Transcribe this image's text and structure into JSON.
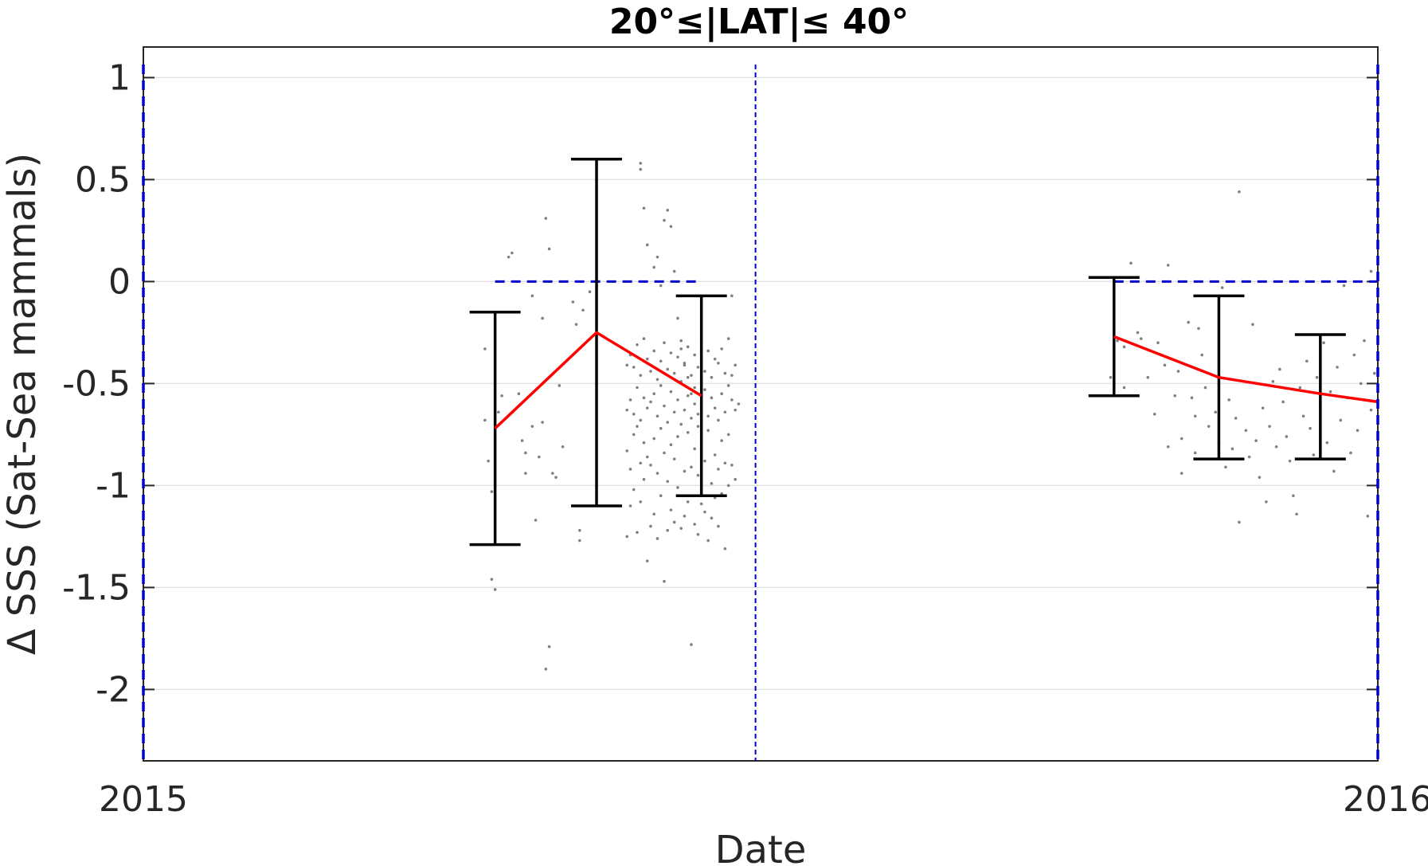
{
  "chart_data": {
    "type": "scatter",
    "title": "20°≤|LAT|≤ 40°",
    "xlabel": "Date",
    "ylabel": "Δ SSS (Sat-Sea mammals)",
    "xlim": [
      "2015-01-01",
      "2016-01-01"
    ],
    "ylim": [
      -2.35,
      1.15
    ],
    "x_ticks": [
      {
        "label": "2015",
        "value": "2015-01-01"
      },
      {
        "label": "2016",
        "value": "2016-01-01"
      }
    ],
    "y_ticks": [
      {
        "label": "1",
        "value": 1
      },
      {
        "label": "0.5",
        "value": 0.5
      },
      {
        "label": "0",
        "value": 0
      },
      {
        "label": "-0.5",
        "value": -0.5
      },
      {
        "label": "-1",
        "value": -1
      },
      {
        "label": "-1.5",
        "value": -1.5
      },
      {
        "label": "-2",
        "value": -2
      }
    ],
    "grid": true,
    "colors": {
      "mean_line": "#ff0000",
      "error_bars": "#000000",
      "points": "#808080",
      "reference": "#0000cc",
      "grid": "#e1e1e1"
    },
    "mean_line": [
      {
        "x": "2015-04-15",
        "y": -0.72
      },
      {
        "x": "2015-05-15",
        "y": -0.25
      },
      {
        "x": "2015-06-15",
        "y": -0.56
      },
      {
        "x": "2015-10-15",
        "y": -0.27
      },
      {
        "x": "2015-11-15",
        "y": -0.47
      },
      {
        "x": "2015-12-15",
        "y": -0.55
      },
      {
        "x": "2016-01-01",
        "y": -0.59
      }
    ],
    "error_bars": [
      {
        "x": "2015-04-15",
        "low": -1.29,
        "high": -0.15
      },
      {
        "x": "2015-05-15",
        "low": -1.1,
        "high": 0.6
      },
      {
        "x": "2015-06-15",
        "low": -1.05,
        "high": -0.07
      },
      {
        "x": "2015-10-15",
        "low": -0.56,
        "high": 0.02
      },
      {
        "x": "2015-11-15",
        "low": -0.87,
        "high": -0.07
      },
      {
        "x": "2015-12-15",
        "low": -0.87,
        "high": -0.26
      }
    ],
    "reference_lines": {
      "zero_segments": [
        {
          "x_start": "2015-04-15",
          "x_end": "2015-06-15",
          "y": 0
        },
        {
          "x_start": "2015-10-15",
          "x_end": "2016-01-01",
          "y": 0
        }
      ],
      "vertical": [
        "2015-01-01",
        "2015-07-01",
        "2016-01-01"
      ]
    },
    "points": [
      {
        "x": "2015-04-12",
        "y": -0.33
      },
      {
        "x": "2015-04-12",
        "y": -0.68
      },
      {
        "x": "2015-04-13",
        "y": -0.88
      },
      {
        "x": "2015-04-14",
        "y": -1.46
      },
      {
        "x": "2015-04-15",
        "y": -1.51
      },
      {
        "x": "2015-04-14",
        "y": -1.03
      },
      {
        "x": "2015-04-16",
        "y": -0.64
      },
      {
        "x": "2015-04-17",
        "y": -0.56
      },
      {
        "x": "2015-04-19",
        "y": 0.12
      },
      {
        "x": "2015-04-20",
        "y": 0.14
      },
      {
        "x": "2015-04-22",
        "y": -0.55
      },
      {
        "x": "2015-04-23",
        "y": -0.78
      },
      {
        "x": "2015-04-24",
        "y": -0.84
      },
      {
        "x": "2015-04-24",
        "y": -0.94
      },
      {
        "x": "2015-04-26",
        "y": -0.07
      },
      {
        "x": "2015-04-26",
        "y": -0.71
      },
      {
        "x": "2015-04-27",
        "y": -1.17
      },
      {
        "x": "2015-04-28",
        "y": -0.86
      },
      {
        "x": "2015-04-29",
        "y": -0.69
      },
      {
        "x": "2015-04-29",
        "y": -0.18
      },
      {
        "x": "2015-04-30",
        "y": 0.31
      },
      {
        "x": "2015-04-30",
        "y": -1.9
      },
      {
        "x": "2015-05-01",
        "y": -1.79
      },
      {
        "x": "2015-05-01",
        "y": 0.16
      },
      {
        "x": "2015-05-02",
        "y": -0.94
      },
      {
        "x": "2015-05-03",
        "y": -0.96
      },
      {
        "x": "2015-05-04",
        "y": -0.51
      },
      {
        "x": "2015-05-05",
        "y": -0.81
      },
      {
        "x": "2015-05-08",
        "y": -0.1
      },
      {
        "x": "2015-05-09",
        "y": -0.21
      },
      {
        "x": "2015-05-10",
        "y": -1.27
      },
      {
        "x": "2015-05-10",
        "y": -1.22
      },
      {
        "x": "2015-05-11",
        "y": -0.14
      },
      {
        "x": "2015-05-13",
        "y": -0.05
      },
      {
        "x": "2015-05-28",
        "y": 0.58
      },
      {
        "x": "2015-05-28",
        "y": 0.55
      },
      {
        "x": "2015-05-29",
        "y": 0.36
      },
      {
        "x": "2015-05-30",
        "y": 0.18
      },
      {
        "x": "2015-06-01",
        "y": 0.07
      },
      {
        "x": "2015-06-02",
        "y": 0.12
      },
      {
        "x": "2015-06-03",
        "y": -0.02
      },
      {
        "x": "2015-06-04",
        "y": 0.3
      },
      {
        "x": "2015-06-05",
        "y": 0.35
      },
      {
        "x": "2015-06-06",
        "y": 0.27
      },
      {
        "x": "2015-06-07",
        "y": 0.05
      },
      {
        "x": "2015-06-08",
        "y": -0.18
      },
      {
        "x": "2015-06-09",
        "y": -0.33
      },
      {
        "x": "2015-06-10",
        "y": -0.4
      },
      {
        "x": "2015-06-11",
        "y": -0.47
      },
      {
        "x": "2015-06-12",
        "y": -0.55
      },
      {
        "x": "2015-06-13",
        "y": -0.6
      },
      {
        "x": "2015-06-14",
        "y": -0.65
      },
      {
        "x": "2015-05-24",
        "y": -0.41
      },
      {
        "x": "2015-05-24",
        "y": -0.63
      },
      {
        "x": "2015-05-24",
        "y": -0.83
      },
      {
        "x": "2015-05-24",
        "y": -1.25
      },
      {
        "x": "2015-05-25",
        "y": -0.36
      },
      {
        "x": "2015-05-25",
        "y": -0.58
      },
      {
        "x": "2015-05-25",
        "y": -0.92
      },
      {
        "x": "2015-05-25",
        "y": -1.1
      },
      {
        "x": "2015-05-26",
        "y": -0.42
      },
      {
        "x": "2015-05-26",
        "y": -0.65
      },
      {
        "x": "2015-05-26",
        "y": -0.75
      },
      {
        "x": "2015-05-26",
        "y": -1.02
      },
      {
        "x": "2015-05-27",
        "y": -0.31
      },
      {
        "x": "2015-05-27",
        "y": -0.52
      },
      {
        "x": "2015-05-27",
        "y": -0.71
      },
      {
        "x": "2015-05-27",
        "y": -1.23
      },
      {
        "x": "2015-05-28",
        "y": -0.46
      },
      {
        "x": "2015-05-28",
        "y": -0.68
      },
      {
        "x": "2015-05-28",
        "y": -0.89
      },
      {
        "x": "2015-05-28",
        "y": -1.08
      },
      {
        "x": "2015-05-29",
        "y": -0.28
      },
      {
        "x": "2015-05-29",
        "y": -0.57
      },
      {
        "x": "2015-05-29",
        "y": -0.79
      },
      {
        "x": "2015-05-29",
        "y": -0.97
      },
      {
        "x": "2015-05-30",
        "y": -0.38
      },
      {
        "x": "2015-05-30",
        "y": -0.62
      },
      {
        "x": "2015-05-30",
        "y": -0.86
      },
      {
        "x": "2015-05-30",
        "y": -1.37
      },
      {
        "x": "2015-05-31",
        "y": -0.44
      },
      {
        "x": "2015-05-31",
        "y": -0.59
      },
      {
        "x": "2015-05-31",
        "y": -0.9
      },
      {
        "x": "2015-05-31",
        "y": -1.2
      },
      {
        "x": "2015-06-01",
        "y": -0.34
      },
      {
        "x": "2015-06-01",
        "y": -0.55
      },
      {
        "x": "2015-06-01",
        "y": -0.77
      },
      {
        "x": "2015-06-01",
        "y": -1.14
      },
      {
        "x": "2015-06-02",
        "y": -0.48
      },
      {
        "x": "2015-06-02",
        "y": -0.66
      },
      {
        "x": "2015-06-02",
        "y": -0.94
      },
      {
        "x": "2015-06-02",
        "y": -1.26
      },
      {
        "x": "2015-06-03",
        "y": -0.39
      },
      {
        "x": "2015-06-03",
        "y": -0.51
      },
      {
        "x": "2015-06-03",
        "y": -0.72
      },
      {
        "x": "2015-06-03",
        "y": -1.05
      },
      {
        "x": "2015-06-04",
        "y": -0.3
      },
      {
        "x": "2015-06-04",
        "y": -0.61
      },
      {
        "x": "2015-06-04",
        "y": -0.84
      },
      {
        "x": "2015-06-04",
        "y": -1.47
      },
      {
        "x": "2015-06-05",
        "y": -0.43
      },
      {
        "x": "2015-06-05",
        "y": -0.69
      },
      {
        "x": "2015-06-05",
        "y": -0.98
      },
      {
        "x": "2015-06-05",
        "y": -1.22
      },
      {
        "x": "2015-06-06",
        "y": -0.35
      },
      {
        "x": "2015-06-06",
        "y": -0.54
      },
      {
        "x": "2015-06-06",
        "y": -0.8
      },
      {
        "x": "2015-06-06",
        "y": -1.12
      },
      {
        "x": "2015-06-07",
        "y": -0.45
      },
      {
        "x": "2015-06-07",
        "y": -0.64
      },
      {
        "x": "2015-06-07",
        "y": -0.87
      },
      {
        "x": "2015-06-07",
        "y": -1.18
      },
      {
        "x": "2015-06-08",
        "y": -0.37
      },
      {
        "x": "2015-06-08",
        "y": -0.58
      },
      {
        "x": "2015-06-08",
        "y": -0.76
      },
      {
        "x": "2015-06-08",
        "y": -1.01
      },
      {
        "x": "2015-06-09",
        "y": -0.29
      },
      {
        "x": "2015-06-09",
        "y": -0.49
      },
      {
        "x": "2015-06-09",
        "y": -0.7
      },
      {
        "x": "2015-06-09",
        "y": -1.21
      },
      {
        "x": "2015-06-10",
        "y": -0.41
      },
      {
        "x": "2015-06-10",
        "y": -0.63
      },
      {
        "x": "2015-06-10",
        "y": -0.93
      },
      {
        "x": "2015-06-10",
        "y": -1.15
      },
      {
        "x": "2015-06-11",
        "y": -0.32
      },
      {
        "x": "2015-06-11",
        "y": -0.56
      },
      {
        "x": "2015-06-11",
        "y": -0.74
      },
      {
        "x": "2015-06-11",
        "y": -1.08
      },
      {
        "x": "2015-06-12",
        "y": -0.46
      },
      {
        "x": "2015-06-12",
        "y": -0.67
      },
      {
        "x": "2015-06-12",
        "y": -0.91
      },
      {
        "x": "2015-06-12",
        "y": -1.78
      },
      {
        "x": "2015-06-13",
        "y": -0.36
      },
      {
        "x": "2015-06-13",
        "y": -0.52
      },
      {
        "x": "2015-06-13",
        "y": -0.82
      },
      {
        "x": "2015-06-13",
        "y": -1.19
      },
      {
        "x": "2015-06-14",
        "y": -0.42
      },
      {
        "x": "2015-06-14",
        "y": -0.71
      },
      {
        "x": "2015-06-14",
        "y": -0.95
      },
      {
        "x": "2015-06-14",
        "y": -1.24
      },
      {
        "x": "2015-06-15",
        "y": -0.3
      },
      {
        "x": "2015-06-15",
        "y": -0.6
      },
      {
        "x": "2015-06-15",
        "y": -0.79
      },
      {
        "x": "2015-06-15",
        "y": -1.09
      },
      {
        "x": "2015-06-16",
        "y": -0.44
      },
      {
        "x": "2015-06-16",
        "y": -0.53
      },
      {
        "x": "2015-06-16",
        "y": -0.88
      },
      {
        "x": "2015-06-16",
        "y": -1.13
      },
      {
        "x": "2015-06-17",
        "y": -0.34
      },
      {
        "x": "2015-06-17",
        "y": -0.66
      },
      {
        "x": "2015-06-17",
        "y": -0.73
      },
      {
        "x": "2015-06-17",
        "y": -1.27
      },
      {
        "x": "2015-06-18",
        "y": -0.47
      },
      {
        "x": "2015-06-18",
        "y": -0.57
      },
      {
        "x": "2015-06-18",
        "y": -0.99
      },
      {
        "x": "2015-06-18",
        "y": -1.16
      },
      {
        "x": "2015-06-19",
        "y": -0.38
      },
      {
        "x": "2015-06-19",
        "y": -0.62
      },
      {
        "x": "2015-06-19",
        "y": -0.85
      },
      {
        "x": "2015-06-19",
        "y": -1.06
      },
      {
        "x": "2015-06-20",
        "y": -0.4
      },
      {
        "x": "2015-06-20",
        "y": -0.68
      },
      {
        "x": "2015-06-20",
        "y": -0.92
      },
      {
        "x": "2015-06-20",
        "y": -1.2
      },
      {
        "x": "2015-06-21",
        "y": -0.33
      },
      {
        "x": "2015-06-21",
        "y": -0.55
      },
      {
        "x": "2015-06-21",
        "y": -0.78
      },
      {
        "x": "2015-06-21",
        "y": -1.04
      },
      {
        "x": "2015-06-22",
        "y": -0.45
      },
      {
        "x": "2015-06-22",
        "y": -0.64
      },
      {
        "x": "2015-06-22",
        "y": -0.89
      },
      {
        "x": "2015-06-22",
        "y": -1.31
      },
      {
        "x": "2015-06-23",
        "y": -0.28
      },
      {
        "x": "2015-06-23",
        "y": -0.51
      },
      {
        "x": "2015-06-23",
        "y": -0.75
      },
      {
        "x": "2015-06-23",
        "y": -1.0
      },
      {
        "x": "2015-06-24",
        "y": -0.07
      },
      {
        "x": "2015-06-24",
        "y": -0.46
      },
      {
        "x": "2015-06-24",
        "y": -0.58
      },
      {
        "x": "2015-06-24",
        "y": -0.9
      },
      {
        "x": "2015-06-25",
        "y": -0.41
      },
      {
        "x": "2015-06-25",
        "y": -0.63
      },
      {
        "x": "2015-06-25",
        "y": -0.97
      },
      {
        "x": "2015-06-26",
        "y": -0.6
      },
      {
        "x": "2015-10-14",
        "y": -0.47
      },
      {
        "x": "2015-10-16",
        "y": -0.29
      },
      {
        "x": "2015-10-18",
        "y": -0.32
      },
      {
        "x": "2015-10-18",
        "y": -0.52
      },
      {
        "x": "2015-10-20",
        "y": 0.09
      },
      {
        "x": "2015-10-22",
        "y": -0.25
      },
      {
        "x": "2015-10-23",
        "y": -0.28
      },
      {
        "x": "2015-10-25",
        "y": -0.47
      },
      {
        "x": "2015-10-27",
        "y": -0.65
      },
      {
        "x": "2015-10-28",
        "y": -0.3
      },
      {
        "x": "2015-10-30",
        "y": -0.41
      },
      {
        "x": "2015-10-31",
        "y": 0.08
      },
      {
        "x": "2015-10-31",
        "y": -0.81
      },
      {
        "x": "2015-11-02",
        "y": -0.56
      },
      {
        "x": "2015-11-03",
        "y": -0.44
      },
      {
        "x": "2015-11-04",
        "y": -0.94
      },
      {
        "x": "2015-11-04",
        "y": -0.77
      },
      {
        "x": "2015-11-06",
        "y": -0.2
      },
      {
        "x": "2015-11-07",
        "y": -0.57
      },
      {
        "x": "2015-11-08",
        "y": -0.66
      },
      {
        "x": "2015-11-08",
        "y": -0.84
      },
      {
        "x": "2015-11-09",
        "y": -0.23
      },
      {
        "x": "2015-11-10",
        "y": -0.36
      },
      {
        "x": "2015-11-11",
        "y": -0.52
      },
      {
        "x": "2015-11-12",
        "y": -0.71
      },
      {
        "x": "2015-11-14",
        "y": -0.64
      },
      {
        "x": "2015-11-15",
        "y": -0.79
      },
      {
        "x": "2015-11-16",
        "y": -0.03
      },
      {
        "x": "2015-11-17",
        "y": -0.91
      },
      {
        "x": "2015-11-18",
        "y": -0.58
      },
      {
        "x": "2015-11-19",
        "y": -0.82
      },
      {
        "x": "2015-11-20",
        "y": -0.67
      },
      {
        "x": "2015-11-21",
        "y": -1.18
      },
      {
        "x": "2015-11-21",
        "y": 0.44
      },
      {
        "x": "2015-11-23",
        "y": -0.73
      },
      {
        "x": "2015-11-24",
        "y": -0.86
      },
      {
        "x": "2015-11-25",
        "y": -0.21
      },
      {
        "x": "2015-11-26",
        "y": -0.78
      },
      {
        "x": "2015-11-27",
        "y": -0.96
      },
      {
        "x": "2015-11-28",
        "y": -0.62
      },
      {
        "x": "2015-11-29",
        "y": -1.08
      },
      {
        "x": "2015-11-30",
        "y": -0.71
      },
      {
        "x": "2015-12-01",
        "y": -0.49
      },
      {
        "x": "2015-12-02",
        "y": -0.81
      },
      {
        "x": "2015-12-03",
        "y": -0.43
      },
      {
        "x": "2015-12-04",
        "y": -0.59
      },
      {
        "x": "2015-12-05",
        "y": -0.76
      },
      {
        "x": "2015-12-06",
        "y": -0.88
      },
      {
        "x": "2015-12-07",
        "y": -1.05
      },
      {
        "x": "2015-12-08",
        "y": -1.14
      },
      {
        "x": "2015-12-09",
        "y": -0.52
      },
      {
        "x": "2015-12-10",
        "y": -0.66
      },
      {
        "x": "2015-12-11",
        "y": -0.39
      },
      {
        "x": "2015-12-12",
        "y": -0.72
      },
      {
        "x": "2015-12-13",
        "y": -0.85
      },
      {
        "x": "2015-12-14",
        "y": -0.47
      },
      {
        "x": "2015-12-15",
        "y": -0.61
      },
      {
        "x": "2015-12-16",
        "y": -0.3
      },
      {
        "x": "2015-12-17",
        "y": -0.79
      },
      {
        "x": "2015-12-18",
        "y": -0.54
      },
      {
        "x": "2015-12-19",
        "y": -0.93
      },
      {
        "x": "2015-12-20",
        "y": -0.42
      },
      {
        "x": "2015-12-21",
        "y": -0.68
      },
      {
        "x": "2015-12-22",
        "y": -0.02
      },
      {
        "x": "2015-12-23",
        "y": -0.57
      },
      {
        "x": "2015-12-24",
        "y": -0.84
      },
      {
        "x": "2015-12-25",
        "y": -0.36
      },
      {
        "x": "2015-12-26",
        "y": -0.73
      },
      {
        "x": "2015-12-27",
        "y": -0.5
      },
      {
        "x": "2015-12-28",
        "y": -0.29
      },
      {
        "x": "2015-12-29",
        "y": -1.15
      },
      {
        "x": "2015-12-30",
        "y": 0.05
      },
      {
        "x": "2015-12-30",
        "y": -0.63
      },
      {
        "x": "2015-12-31",
        "y": -0.45
      }
    ]
  }
}
